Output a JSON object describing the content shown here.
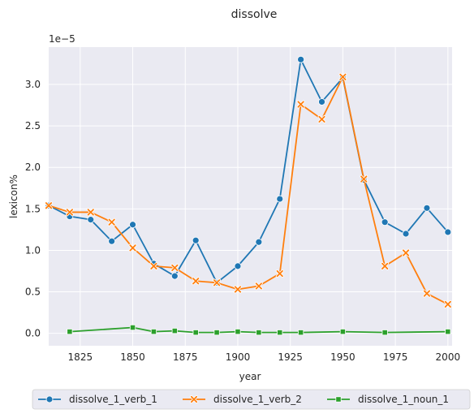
{
  "chart_data": {
    "type": "line",
    "title": "dissolve",
    "xlabel": "year",
    "ylabel": "lexicon%",
    "offset_label": "1e−5",
    "xlim": [
      1810,
      2002
    ],
    "ylim": [
      -0.15,
      3.45
    ],
    "xticks": [
      1825,
      1850,
      1875,
      1900,
      1925,
      1950,
      1975,
      2000
    ],
    "yticks": [
      0.0,
      0.5,
      1.0,
      1.5,
      2.0,
      2.5,
      3.0
    ],
    "ytick_labels": [
      "0.0",
      "0.5",
      "1.0",
      "1.5",
      "2.0",
      "2.5",
      "3.0"
    ],
    "grid": true,
    "legend_position": "bottom",
    "series": [
      {
        "name": "dissolve_1_verb_1",
        "color": "#1f77b4",
        "marker": "circle",
        "x": [
          1810,
          1820,
          1830,
          1840,
          1850,
          1860,
          1870,
          1880,
          1890,
          1900,
          1910,
          1920,
          1930,
          1940,
          1950,
          1960,
          1970,
          1980,
          1990,
          2000
        ],
        "y": [
          1.54,
          1.41,
          1.37,
          1.11,
          1.31,
          0.84,
          0.69,
          1.12,
          0.61,
          0.81,
          1.1,
          1.62,
          3.3,
          2.79,
          3.08,
          1.85,
          1.34,
          1.2,
          1.51,
          1.22
        ]
      },
      {
        "name": "dissolve_1_verb_2",
        "color": "#ff7f0e",
        "marker": "x",
        "x": [
          1810,
          1820,
          1830,
          1840,
          1850,
          1860,
          1870,
          1880,
          1890,
          1900,
          1910,
          1920,
          1930,
          1940,
          1950,
          1960,
          1970,
          1980,
          1990,
          2000
        ],
        "y": [
          1.54,
          1.46,
          1.46,
          1.34,
          1.03,
          0.81,
          0.79,
          0.63,
          0.61,
          0.53,
          0.57,
          0.72,
          2.76,
          2.58,
          3.09,
          1.86,
          0.81,
          0.97,
          0.48,
          0.35
        ]
      },
      {
        "name": "dissolve_1_noun_1",
        "color": "#2ca02c",
        "marker": "square",
        "x": [
          1820,
          1850,
          1860,
          1870,
          1880,
          1890,
          1900,
          1910,
          1920,
          1930,
          1950,
          1970,
          2000
        ],
        "y": [
          0.02,
          0.07,
          0.02,
          0.03,
          0.01,
          0.01,
          0.02,
          0.01,
          0.01,
          0.01,
          0.02,
          0.01,
          0.02
        ]
      }
    ]
  }
}
